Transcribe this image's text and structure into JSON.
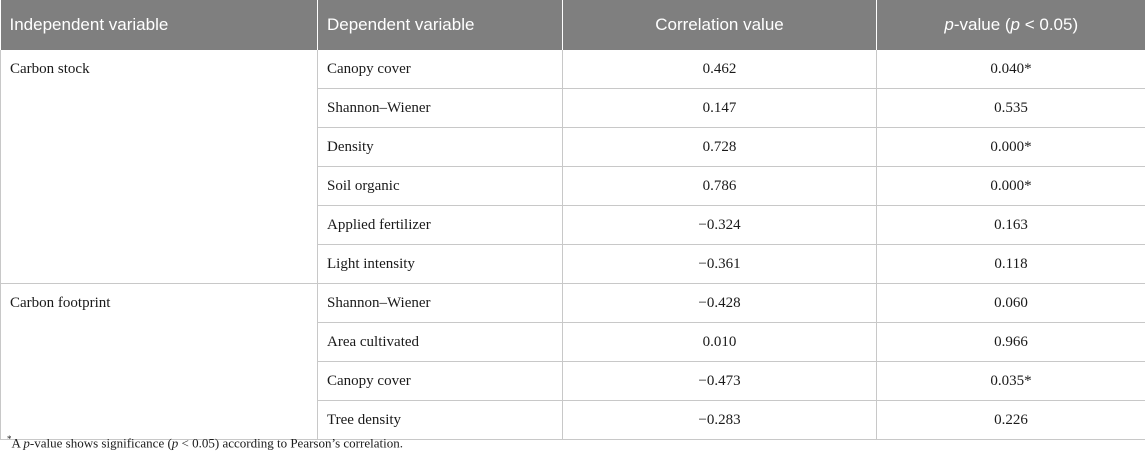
{
  "headers": {
    "independent": "Independent variable",
    "dependent": "Dependent variable",
    "correlation": "Correlation value",
    "pvalue_italic": "p",
    "pvalue_mid": "-value (",
    "pvalue_italic2": "p",
    "pvalue_tail": " < 0.05)"
  },
  "groups": [
    {
      "name": "Carbon stock",
      "rows": [
        {
          "dependent": "Canopy cover",
          "correlation": "0.462",
          "pvalue": "0.040*"
        },
        {
          "dependent": "Shannon–Wiener",
          "correlation": "0.147",
          "pvalue": "0.535"
        },
        {
          "dependent": "Density",
          "correlation": "0.728",
          "pvalue": "0.000*"
        },
        {
          "dependent": "Soil organic",
          "correlation": "0.786",
          "pvalue": "0.000*"
        },
        {
          "dependent": "Applied fertilizer",
          "correlation": "−0.324",
          "pvalue": "0.163"
        },
        {
          "dependent": "Light intensity",
          "correlation": "−0.361",
          "pvalue": "0.118"
        }
      ]
    },
    {
      "name": "Carbon footprint",
      "rows": [
        {
          "dependent": "Shannon–Wiener",
          "correlation": "−0.428",
          "pvalue": "0.060"
        },
        {
          "dependent": "Area cultivated",
          "correlation": "0.010",
          "pvalue": "0.966"
        },
        {
          "dependent": "Canopy cover",
          "correlation": "−0.473",
          "pvalue": "0.035*"
        },
        {
          "dependent": "Tree density",
          "correlation": "−0.283",
          "pvalue": "0.226"
        }
      ]
    }
  ],
  "footnote": {
    "mark": "*",
    "pre": "A ",
    "italic1": "p",
    "mid": "-value shows significance (",
    "italic2": "p",
    "tail": " < 0.05) according to Pearson’s correlation."
  }
}
